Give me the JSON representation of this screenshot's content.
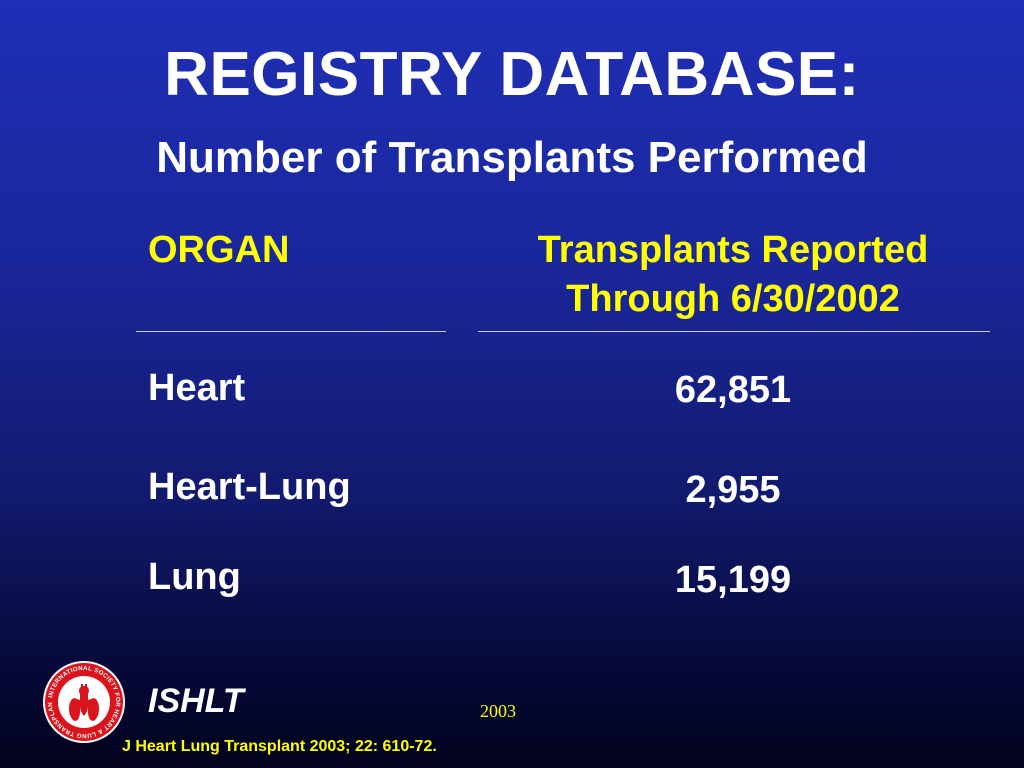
{
  "slide": {
    "title": "REGISTRY DATABASE:",
    "subtitle": "Number of Transplants Performed"
  },
  "table": {
    "headers": {
      "organ": "ORGAN",
      "count_line1": "Transplants Reported",
      "count_line2": "Through 6/30/2002"
    },
    "rows": [
      {
        "organ": "Heart",
        "count": "62,851"
      },
      {
        "organ": "Heart-Lung",
        "count": "2,955"
      },
      {
        "organ": "Lung",
        "count": "15,199"
      }
    ]
  },
  "footer": {
    "org": "ISHLT",
    "year": "2003",
    "citation": "J Heart Lung Transplant 2003; 22: 610-72.",
    "logo_ring_text": "INTERNATIONAL SOCIETY FOR HEART & LUNG TRANSPLANTATION"
  },
  "colors": {
    "background_top": "#1f2fb6",
    "background_bottom": "#02031c",
    "title_text": "#ffffff",
    "header_text": "#ffff00",
    "logo_red": "#d9141c"
  }
}
